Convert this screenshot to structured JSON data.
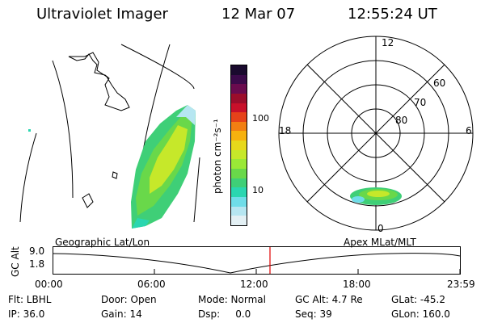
{
  "header": {
    "instrument": "Ultraviolet Imager",
    "date": "12 Mar 07",
    "time": "12:55:24 UT"
  },
  "colorbar": {
    "unit_label": "photon cm⁻²s⁻¹",
    "ticks": [
      "100",
      "10"
    ],
    "colors": [
      "#1a0a2e",
      "#3b0a4a",
      "#6a0b4e",
      "#9b0d2b",
      "#c8102a",
      "#e6421a",
      "#f27f12",
      "#f6b10f",
      "#e7d81b",
      "#c6e82a",
      "#9ae837",
      "#69d84a",
      "#3fcf77",
      "#2ad6b0",
      "#6fdde8",
      "#b6e6f1",
      "#e3f0f4"
    ]
  },
  "polar": {
    "mlt_labels": {
      "top": "12",
      "left": "18",
      "right": "6",
      "bottom": "0"
    },
    "lat_labels": [
      "60",
      "70",
      "80"
    ]
  },
  "panels": {
    "left_caption": "Geographic Lat/Lon",
    "right_caption": "Apex MLat/MLT"
  },
  "altitude_plot": {
    "ylabel": "GC Alt",
    "yticks": [
      "9.0",
      "1.8"
    ],
    "xticks": [
      "00:00",
      "06:00",
      "12:00",
      "18:00",
      "23:59"
    ],
    "marker_color": "#e00000"
  },
  "info": {
    "row1": {
      "flt": "Flt: LBHL",
      "door": "Door: Open",
      "mode": "Mode: Normal",
      "gcalt": "GC Alt: 4.7 Re",
      "glat": "GLat: -45.2"
    },
    "row2": {
      "ip": "IP: 36.0",
      "gain": "Gain: 14",
      "dsp": "Dsp:     0.0",
      "seq": "Seq: 39",
      "glon": "GLon: 160.0"
    }
  }
}
